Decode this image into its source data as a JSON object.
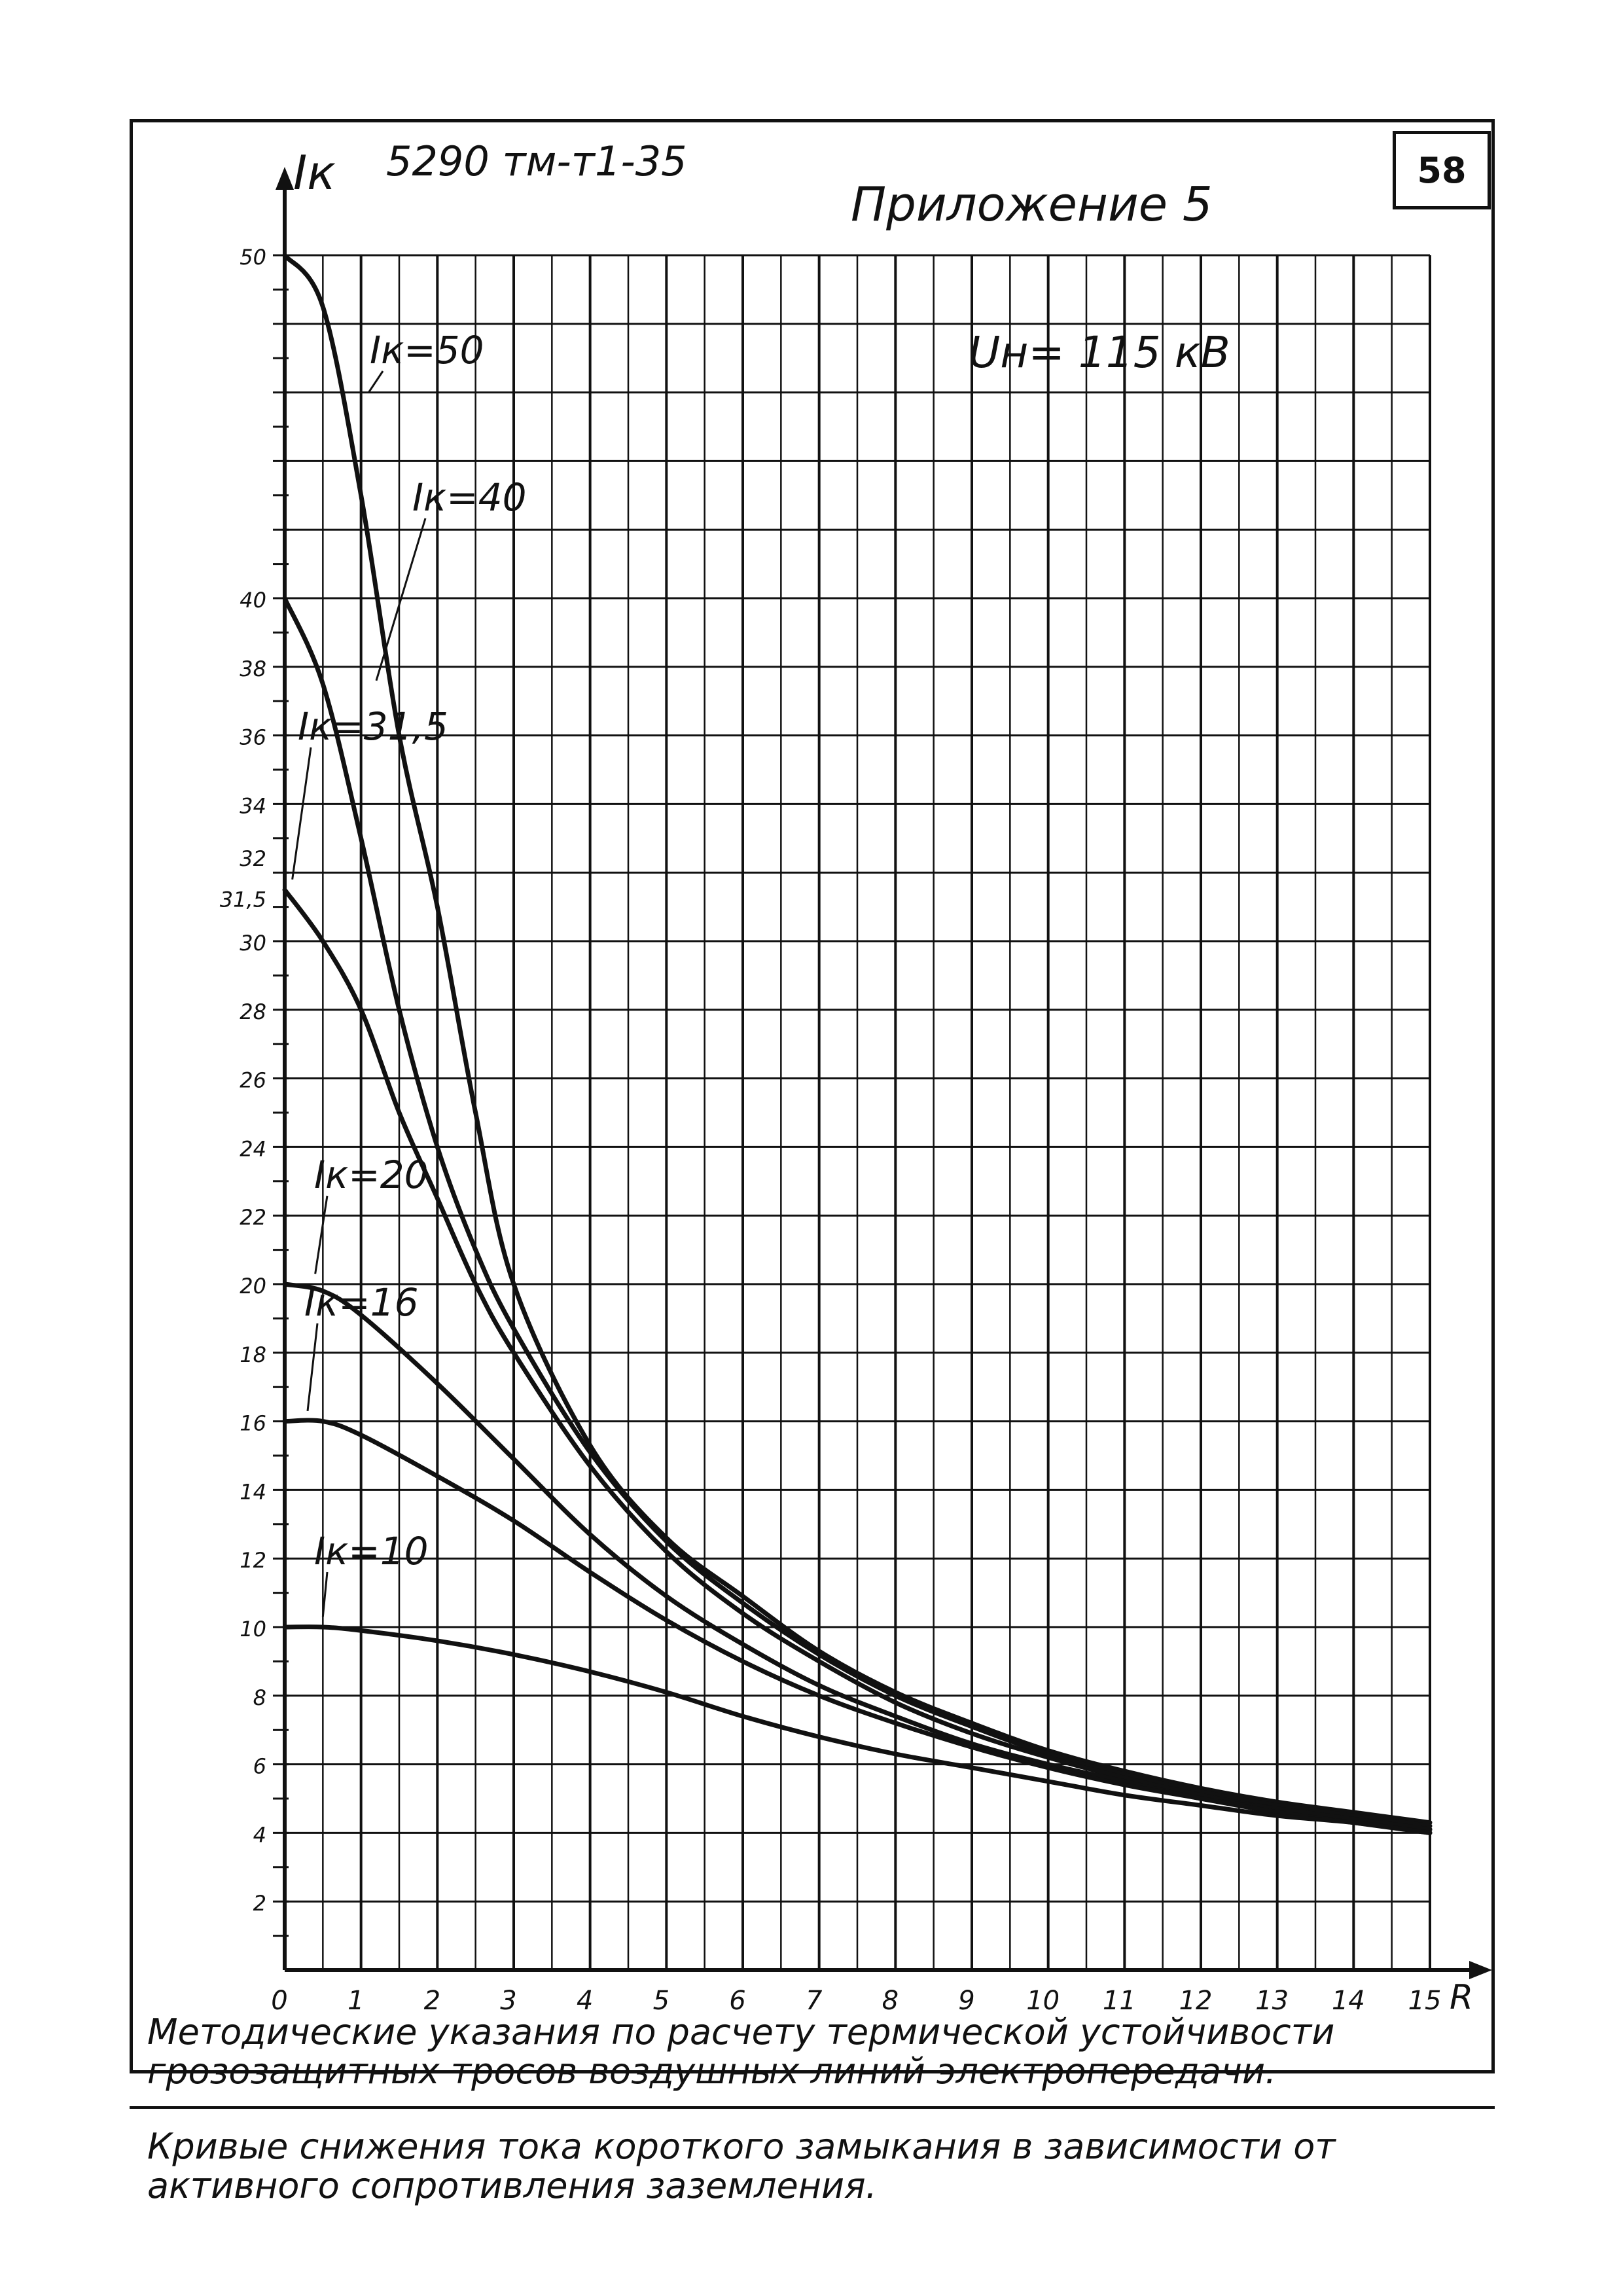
{
  "header": {
    "doc_code": "5290 тм-т1-35",
    "appendix": "Приложение 5",
    "page_number": "58",
    "voltage": "Uн= 115 кВ"
  },
  "caption": {
    "line1": "Методические указания по расчету термической устойчивости грозозащитных тросов воздушных линий электропередачи.",
    "line2": "Кривые снижения тока короткого замыкания в зависимости от активного сопротивления заземления."
  },
  "chart_data": {
    "type": "line",
    "ylabel": "Iк",
    "xlabel": "R",
    "xlim": [
      0,
      15
    ],
    "ylim": [
      0,
      50
    ],
    "x_ticks": [
      "0",
      "1",
      "2",
      "3",
      "4",
      "5",
      "6",
      "7",
      "8",
      "9",
      "10",
      "11",
      "12",
      "13",
      "14",
      "15"
    ],
    "y_ticks": [
      "2",
      "4",
      "6",
      "8",
      "10",
      "12",
      "14",
      "16",
      "18",
      "20",
      "22",
      "24",
      "26",
      "28",
      "30",
      "31,5",
      "32",
      "34",
      "36",
      "38",
      "40",
      "50"
    ],
    "grid": true,
    "series": [
      {
        "name": "Iк=50",
        "x": [
          0,
          0.5,
          1,
          1.5,
          2,
          2.5,
          3,
          4,
          5,
          6,
          7,
          8,
          9,
          10,
          11,
          12,
          13,
          14,
          15
        ],
        "y": [
          50,
          48.5,
          43,
          36,
          31,
          25,
          20,
          15.3,
          12.6,
          10.9,
          9.3,
          8.1,
          7.2,
          6.4,
          5.8,
          5.3,
          4.9,
          4.6,
          4.3
        ]
      },
      {
        "name": "Iк=40",
        "x": [
          0,
          0.5,
          1,
          1.5,
          2,
          2.5,
          3,
          4,
          5,
          6,
          7,
          8,
          9,
          10,
          11,
          12,
          13,
          14,
          15
        ],
        "y": [
          40,
          37.5,
          33,
          28,
          24,
          21,
          18.7,
          15.1,
          12.5,
          10.7,
          9.2,
          8.0,
          7.1,
          6.3,
          5.7,
          5.2,
          4.8,
          4.5,
          4.2
        ]
      },
      {
        "name": "Iк=31,5",
        "x": [
          0,
          0.5,
          1,
          1.5,
          2,
          2.5,
          3,
          4,
          5,
          6,
          7,
          8,
          9,
          10,
          11,
          12,
          13,
          14,
          15
        ],
        "y": [
          31.5,
          30,
          28,
          25,
          22.5,
          20,
          18,
          14.7,
          12.2,
          10.4,
          9.0,
          7.8,
          6.9,
          6.2,
          5.6,
          5.1,
          4.7,
          4.4,
          4.1
        ]
      },
      {
        "name": "Iк=20",
        "x": [
          0,
          0.5,
          1,
          2,
          3,
          4,
          5,
          6,
          7,
          8,
          9,
          10,
          11,
          12,
          13,
          14,
          15
        ],
        "y": [
          20,
          19.8,
          19.1,
          17.1,
          14.9,
          12.7,
          10.9,
          9.5,
          8.3,
          7.4,
          6.6,
          6.0,
          5.5,
          5.0,
          4.7,
          4.4,
          4.1
        ]
      },
      {
        "name": "Iк=16",
        "x": [
          0,
          0.5,
          1,
          2,
          3,
          4,
          5,
          6,
          7,
          8,
          9,
          10,
          11,
          12,
          13,
          14,
          15
        ],
        "y": [
          16,
          16,
          15.6,
          14.4,
          13.1,
          11.6,
          10.2,
          9.0,
          8.0,
          7.2,
          6.5,
          5.9,
          5.4,
          5.0,
          4.6,
          4.3,
          4.0
        ]
      },
      {
        "name": "Iк=10",
        "x": [
          0,
          0.5,
          1,
          2,
          3,
          4,
          5,
          6,
          7,
          8,
          9,
          10,
          11,
          12,
          13,
          14,
          15
        ],
        "y": [
          10,
          10,
          9.9,
          9.6,
          9.2,
          8.7,
          8.1,
          7.4,
          6.8,
          6.3,
          5.9,
          5.5,
          5.1,
          4.8,
          4.5,
          4.3,
          4.0
        ]
      }
    ]
  }
}
